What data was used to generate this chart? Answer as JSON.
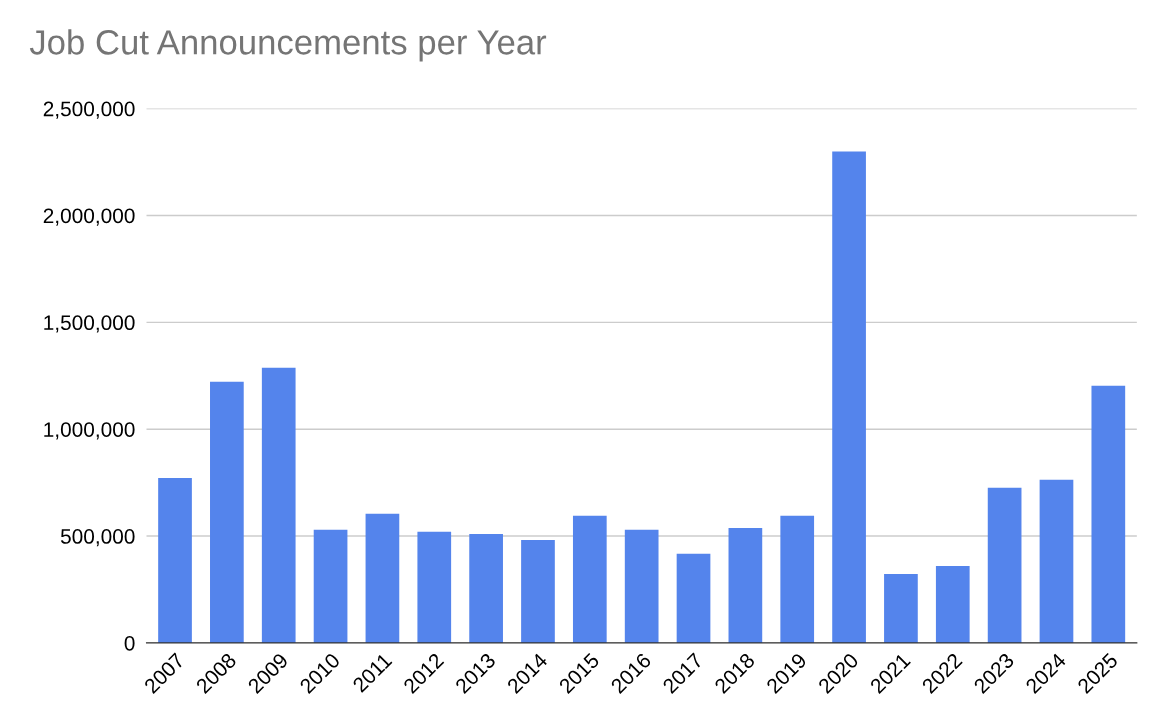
{
  "chart_data": {
    "type": "bar",
    "title": "Job Cut Announcements per Year",
    "categories": [
      "2007",
      "2008",
      "2009",
      "2010",
      "2011",
      "2012",
      "2013",
      "2014",
      "2015",
      "2016",
      "2017",
      "2018",
      "2019",
      "2020",
      "2021",
      "2022",
      "2023",
      "2024",
      "2025"
    ],
    "values": [
      772000,
      1222000,
      1287000,
      529000,
      604000,
      520000,
      510000,
      482000,
      595000,
      529000,
      417000,
      538000,
      595000,
      2299000,
      323000,
      360000,
      726000,
      763000,
      1203000
    ],
    "color": "#5484ec",
    "ylim": [
      0,
      2500000
    ],
    "yticks": [
      {
        "value": 0,
        "label": "0"
      },
      {
        "value": 500000,
        "label": "500,000"
      },
      {
        "value": 1000000,
        "label": "1,000,000"
      },
      {
        "value": 1500000,
        "label": "1,500,000"
      },
      {
        "value": 2000000,
        "label": "2,000,000"
      },
      {
        "value": 2500000,
        "label": "2,500,000"
      }
    ],
    "grid": "y"
  }
}
